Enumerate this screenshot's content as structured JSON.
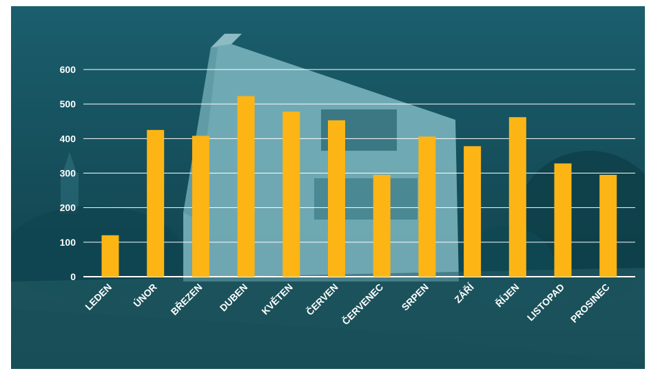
{
  "colors": {
    "bar": "#FDB515",
    "grid": "#FFFFFF",
    "text": "#FFFFFF",
    "background_top": "#1B5E6D",
    "background_bottom": "#0E3C45"
  },
  "chart_data": {
    "type": "bar",
    "title": "",
    "xlabel": "",
    "ylabel": "",
    "ylim": [
      0,
      600
    ],
    "yticks": [
      0,
      100,
      200,
      300,
      400,
      500,
      600
    ],
    "grid": true,
    "categories": [
      "LEDEN",
      "ÚNOR",
      "BŘEZEN",
      "DUBEN",
      "KVĚTEN",
      "ČERVEN",
      "ČERVENEC",
      "SRPEN",
      "ZÁŘÍ",
      "ŘÍJEN",
      "LISTOPAD",
      "PROSINEC"
    ],
    "values": [
      120,
      425,
      408,
      523,
      478,
      453,
      295,
      406,
      378,
      462,
      328,
      295
    ]
  }
}
